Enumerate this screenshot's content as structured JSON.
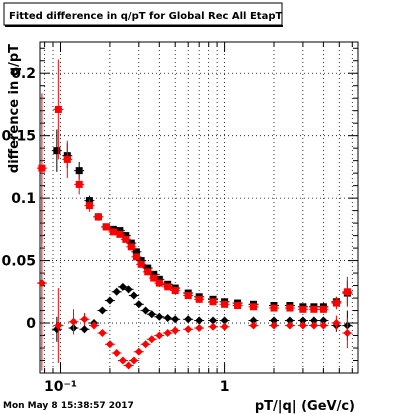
{
  "chart_data": {
    "type": "scatter",
    "title": "Fitted difference in q/pT for Global Rec All EtapT",
    "xlabel": "pT/|q| (GeV/c)",
    "ylabel": "difference in q/pT",
    "x_scale": "log",
    "xlim": [
      0.075,
      6.5
    ],
    "ylim": [
      -0.04,
      0.225
    ],
    "grid": true,
    "x_major_ticks": [
      {
        "v": 0.1,
        "label": "10⁻¹"
      },
      {
        "v": 1,
        "label": "1"
      }
    ],
    "y_ticks": [
      {
        "v": 0,
        "label": "0"
      },
      {
        "v": 0.05,
        "label": "0.05"
      },
      {
        "v": 0.1,
        "label": "0.1"
      },
      {
        "v": 0.15,
        "label": "0.15"
      },
      {
        "v": 0.2,
        "label": "0.2"
      }
    ],
    "series": [
      {
        "color": "#000000",
        "marker": "square",
        "points": [
          [
            0.095,
            0.138,
            0.017
          ],
          [
            0.11,
            0.134,
            0.01
          ],
          [
            0.13,
            0.122,
            0.007
          ],
          [
            0.15,
            0.098,
            0.004
          ],
          [
            0.17,
            0.085,
            0.003
          ],
          [
            0.19,
            0.077,
            0.002
          ],
          [
            0.21,
            0.075,
            0.002
          ],
          [
            0.23,
            0.074,
            0.002
          ],
          [
            0.25,
            0.07,
            0.002
          ],
          [
            0.27,
            0.064,
            0.002
          ],
          [
            0.29,
            0.057,
            0.002
          ],
          [
            0.31,
            0.05,
            0.002
          ],
          [
            0.34,
            0.044,
            0.002
          ],
          [
            0.37,
            0.039,
            0.002
          ],
          [
            0.4,
            0.035,
            0.002
          ],
          [
            0.45,
            0.031,
            0.002
          ],
          [
            0.5,
            0.028,
            0.002
          ],
          [
            0.6,
            0.024,
            0.002
          ],
          [
            0.7,
            0.021,
            0.002
          ],
          [
            0.85,
            0.019,
            0.002
          ],
          [
            1.0,
            0.017,
            0.002
          ],
          [
            1.2,
            0.016,
            0.002
          ],
          [
            1.5,
            0.015,
            0.002
          ],
          [
            2.0,
            0.014,
            0.002
          ],
          [
            2.5,
            0.014,
            0.002
          ],
          [
            3.0,
            0.013,
            0.002
          ],
          [
            3.5,
            0.013,
            0.002
          ],
          [
            4.0,
            0.013,
            0.003
          ],
          [
            4.8,
            0.017,
            0.004
          ],
          [
            5.6,
            0.024,
            0.01
          ]
        ]
      },
      {
        "color": "#ff0000",
        "marker": "square",
        "points": [
          [
            0.077,
            0.124,
            0.06
          ],
          [
            0.097,
            0.171,
            0.04
          ],
          [
            0.11,
            0.131,
            0.015
          ],
          [
            0.13,
            0.111,
            0.008
          ],
          [
            0.15,
            0.094,
            0.005
          ],
          [
            0.17,
            0.085,
            0.003
          ],
          [
            0.19,
            0.077,
            0.002
          ],
          [
            0.21,
            0.073,
            0.002
          ],
          [
            0.23,
            0.071,
            0.002
          ],
          [
            0.25,
            0.067,
            0.002
          ],
          [
            0.27,
            0.061,
            0.002
          ],
          [
            0.29,
            0.053,
            0.002
          ],
          [
            0.31,
            0.047,
            0.002
          ],
          [
            0.34,
            0.041,
            0.002
          ],
          [
            0.37,
            0.036,
            0.002
          ],
          [
            0.4,
            0.032,
            0.002
          ],
          [
            0.45,
            0.029,
            0.002
          ],
          [
            0.5,
            0.026,
            0.002
          ],
          [
            0.6,
            0.022,
            0.002
          ],
          [
            0.7,
            0.019,
            0.002
          ],
          [
            0.85,
            0.017,
            0.002
          ],
          [
            1.0,
            0.015,
            0.002
          ],
          [
            1.2,
            0.014,
            0.002
          ],
          [
            1.5,
            0.013,
            0.002
          ],
          [
            2.0,
            0.012,
            0.002
          ],
          [
            2.5,
            0.012,
            0.002
          ],
          [
            3.0,
            0.011,
            0.002
          ],
          [
            3.5,
            0.011,
            0.002
          ],
          [
            4.0,
            0.011,
            0.003
          ],
          [
            4.8,
            0.016,
            0.005
          ],
          [
            5.6,
            0.025,
            0.012
          ]
        ]
      },
      {
        "color": "#000000",
        "marker": "diamond",
        "points": [
          [
            0.095,
            -0.005,
            0.01
          ],
          [
            0.12,
            -0.004,
            0.005
          ],
          [
            0.14,
            -0.005,
            0.003
          ],
          [
            0.16,
            0.0,
            0.002
          ],
          [
            0.18,
            0.01,
            0.002
          ],
          [
            0.2,
            0.018,
            0.002
          ],
          [
            0.22,
            0.025,
            0.002
          ],
          [
            0.24,
            0.029,
            0.002
          ],
          [
            0.26,
            0.027,
            0.002
          ],
          [
            0.28,
            0.022,
            0.002
          ],
          [
            0.3,
            0.015,
            0.002
          ],
          [
            0.33,
            0.01,
            0.002
          ],
          [
            0.36,
            0.007,
            0.002
          ],
          [
            0.4,
            0.005,
            0.002
          ],
          [
            0.45,
            0.004,
            0.002
          ],
          [
            0.5,
            0.003,
            0.002
          ],
          [
            0.6,
            0.003,
            0.002
          ],
          [
            0.7,
            0.002,
            0.002
          ],
          [
            0.85,
            0.002,
            0.002
          ],
          [
            1.0,
            0.002,
            0.002
          ],
          [
            1.5,
            0.002,
            0.002
          ],
          [
            2.0,
            0.002,
            0.002
          ],
          [
            2.5,
            0.002,
            0.002
          ],
          [
            3.0,
            0.002,
            0.002
          ],
          [
            3.5,
            0.002,
            0.003
          ],
          [
            4.0,
            0.002,
            0.003
          ],
          [
            4.8,
            -0.002,
            0.005
          ],
          [
            5.6,
            -0.002,
            0.012
          ]
        ]
      },
      {
        "color": "#ff0000",
        "marker": "diamond",
        "points": [
          [
            0.077,
            0.032,
            0.07
          ],
          [
            0.097,
            -0.002,
            0.03
          ],
          [
            0.12,
            0.001,
            0.01
          ],
          [
            0.14,
            0.003,
            0.005
          ],
          [
            0.16,
            -0.002,
            0.003
          ],
          [
            0.18,
            -0.008,
            0.002
          ],
          [
            0.2,
            -0.017,
            0.002
          ],
          [
            0.22,
            -0.024,
            0.002
          ],
          [
            0.24,
            -0.03,
            0.002
          ],
          [
            0.26,
            -0.034,
            0.002
          ],
          [
            0.28,
            -0.03,
            0.002
          ],
          [
            0.3,
            -0.023,
            0.002
          ],
          [
            0.33,
            -0.017,
            0.002
          ],
          [
            0.36,
            -0.013,
            0.002
          ],
          [
            0.4,
            -0.01,
            0.002
          ],
          [
            0.45,
            -0.008,
            0.002
          ],
          [
            0.5,
            -0.006,
            0.002
          ],
          [
            0.6,
            -0.005,
            0.002
          ],
          [
            0.7,
            -0.004,
            0.002
          ],
          [
            0.85,
            -0.003,
            0.002
          ],
          [
            1.0,
            -0.003,
            0.002
          ],
          [
            1.5,
            -0.002,
            0.002
          ],
          [
            2.0,
            -0.002,
            0.002
          ],
          [
            2.5,
            -0.002,
            0.002
          ],
          [
            3.0,
            -0.002,
            0.002
          ],
          [
            3.5,
            -0.002,
            0.003
          ],
          [
            4.0,
            -0.002,
            0.003
          ],
          [
            4.8,
            0.0,
            0.006
          ],
          [
            5.6,
            -0.008,
            0.012
          ]
        ]
      }
    ]
  },
  "footer": {
    "timestamp": "Mon May  8 15:38:57 2017"
  }
}
